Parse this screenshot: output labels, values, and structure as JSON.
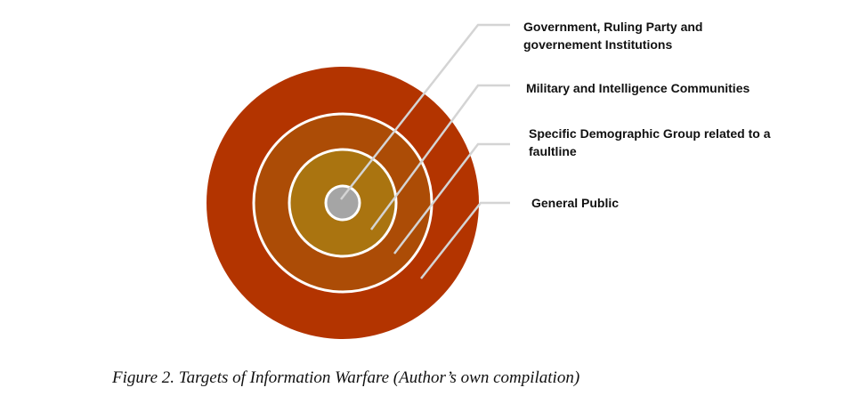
{
  "diagram": {
    "layers": [
      {
        "id": "core",
        "label_lines": [
          "Government, Ruling Party and",
          "governement Institutions"
        ],
        "color": "#a5a5a5"
      },
      {
        "id": "second",
        "label_lines": [
          "Military and Intelligence Communities"
        ],
        "color": "#aa7410"
      },
      {
        "id": "third",
        "label_lines": [
          "Specific Demographic Group related to a",
          "faultline"
        ],
        "color": "#ac4c06"
      },
      {
        "id": "outer",
        "label_lines": [
          "General Public"
        ],
        "color": "#b33400"
      }
    ],
    "ring_border_color": "#ffffff",
    "leader_line_color": "#d4d4d4"
  },
  "caption": "Figure 2. Targets of Information Warfare (Author’s own compilation)"
}
